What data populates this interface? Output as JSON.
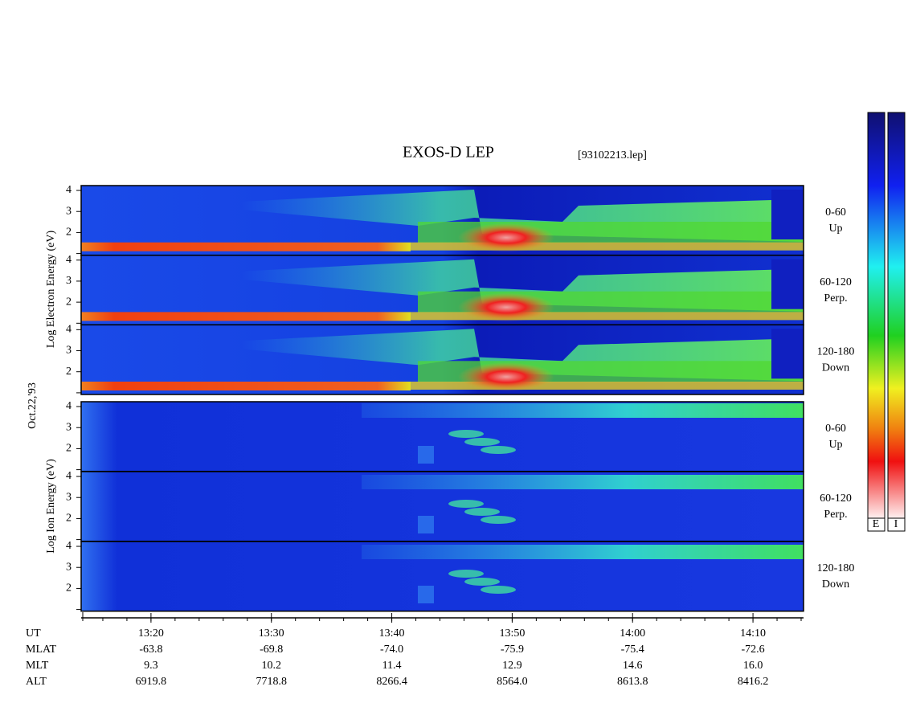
{
  "header": {
    "title": "EXOS-D LEP",
    "file": "[93102213.lep]"
  },
  "left_labels": {
    "electron": "Log   Electron   Energy (eV)",
    "date": "Oct.22,'93",
    "ion": "Log   Ion   Energy (eV)"
  },
  "panels": [
    {
      "group": "electron",
      "angle": "0-60",
      "direction": "Up"
    },
    {
      "group": "electron",
      "angle": "60-120",
      "direction": "Perp."
    },
    {
      "group": "electron",
      "angle": "120-180",
      "direction": "Down"
    },
    {
      "group": "ion",
      "angle": "0-60",
      "direction": "Up"
    },
    {
      "group": "ion",
      "angle": "60-120",
      "direction": "Perp."
    },
    {
      "group": "ion",
      "angle": "120-180",
      "direction": "Down"
    }
  ],
  "energy_axis": {
    "ylim": [
      0.92,
      4.23
    ],
    "ticks": [
      2,
      3,
      4
    ]
  },
  "time_axis": {
    "xlim": [
      794.2,
      854.2
    ],
    "ticks": [
      {
        "value": 800,
        "label": "13:20"
      },
      {
        "value": 810,
        "label": "13:30"
      },
      {
        "value": 820,
        "label": "13:40"
      },
      {
        "value": 830,
        "label": "13:50"
      },
      {
        "value": 840,
        "label": "14:00"
      },
      {
        "value": 850,
        "label": "14:10"
      }
    ]
  },
  "orbit_table": {
    "rows": [
      {
        "name": "UT"
      },
      {
        "name": "MLAT",
        "values": [
          "-63.8",
          "-69.8",
          "-74.0",
          "-75.9",
          "-75.4",
          "-72.6"
        ]
      },
      {
        "name": "MLT",
        "values": [
          "9.3",
          "10.2",
          "11.4",
          "12.9",
          "14.6",
          "16.0"
        ]
      },
      {
        "name": "ALT",
        "values": [
          "6919.8",
          "7718.8",
          "8266.4",
          "8564.0",
          "8613.8",
          "8416.2"
        ]
      }
    ]
  },
  "colorbar": {
    "labels": [
      "E",
      "I"
    ]
  }
}
